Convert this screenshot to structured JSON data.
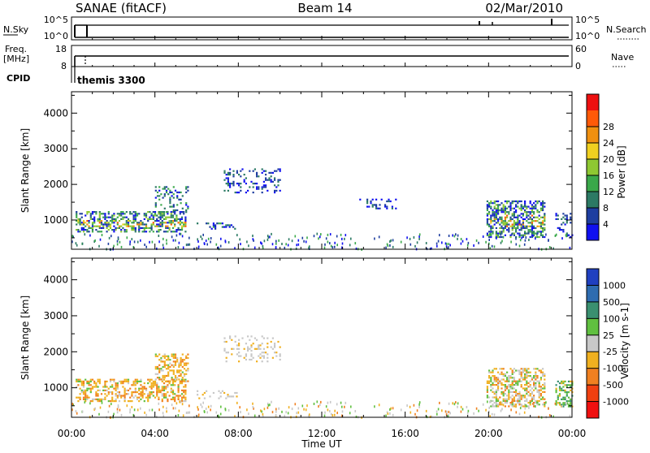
{
  "header": {
    "station": "SANAE (fitACF)",
    "beam": "Beam 14",
    "date": "02/Mar/2010"
  },
  "sky_panel": {
    "left_label": "N.Sky",
    "left_ticks": [
      "10^5",
      "10^0"
    ],
    "right_label": "N.Search",
    "right_ticks": [
      "10^5",
      "10^0"
    ]
  },
  "freq_panel": {
    "left_label_1": "Freq.",
    "left_label_2": "[MHz]",
    "left_ticks": [
      "18",
      "8"
    ],
    "right_label": "Nave",
    "right_ticks": [
      "60",
      "0"
    ]
  },
  "cpid": {
    "label": "CPID",
    "value": "themis 3300"
  },
  "chart_data": [
    {
      "type": "heatmap",
      "title": "",
      "quantity": "Power",
      "xlabel": "",
      "ylabel": "Slant Range [km]",
      "xlim": [
        "00:00",
        "24:00"
      ],
      "ylim": [
        180,
        4600
      ],
      "y_ticks": [
        "1000",
        "2000",
        "3000",
        "4000"
      ],
      "colorbar": {
        "label": "Power [dB]",
        "ticks": [
          "4",
          "8",
          "12",
          "16",
          "20",
          "24",
          "28"
        ],
        "range": [
          0,
          32
        ],
        "colors": [
          "#1010f0",
          "#1e3ea0",
          "#2c7a64",
          "#3aa84a",
          "#8ec832",
          "#f0d020",
          "#f09010",
          "#ff5a08",
          "#ee1010"
        ]
      },
      "echo_regions": [
        {
          "t_start": 0.2,
          "t_end": 5.5,
          "range_low": 650,
          "range_high": 1250,
          "level": "high"
        },
        {
          "t_start": 4.0,
          "t_end": 5.6,
          "range_low": 1200,
          "range_high": 1950,
          "level": "medium"
        },
        {
          "t_start": 6.0,
          "t_end": 7.9,
          "range_low": 730,
          "range_high": 930,
          "level": "medium"
        },
        {
          "t_start": 7.3,
          "t_end": 10.0,
          "range_low": 1750,
          "range_high": 2450,
          "level": "low"
        },
        {
          "t_start": 13.8,
          "t_end": 15.6,
          "range_low": 1300,
          "range_high": 1600,
          "level": "low"
        },
        {
          "t_start": 19.9,
          "t_end": 22.7,
          "range_low": 500,
          "range_high": 1550,
          "level": "high"
        },
        {
          "t_start": 23.2,
          "t_end": 24.0,
          "range_low": 500,
          "range_high": 1200,
          "level": "low"
        }
      ]
    },
    {
      "type": "heatmap",
      "title": "",
      "quantity": "Velocity",
      "xlabel": "Time UT",
      "ylabel": "Slant Range [km]",
      "xlim": [
        "00:00",
        "24:00"
      ],
      "ylim": [
        180,
        4600
      ],
      "x_ticks": [
        "00:00",
        "04:00",
        "08:00",
        "12:00",
        "16:00",
        "20:00",
        "00:00"
      ],
      "y_ticks": [
        "1000",
        "2000",
        "3000",
        "4000"
      ],
      "colorbar": {
        "label": "Velocity [m s-1]",
        "ticks": [
          "1000",
          "500",
          "100",
          "25",
          "-25",
          "-100",
          "-500",
          "-1000"
        ],
        "range": [
          -1250,
          1250
        ],
        "colors": [
          "#2040c0",
          "#2e6cb0",
          "#3a9070",
          "#60c040",
          "#c8c8c8",
          "#f0b020",
          "#f08020",
          "#f04010",
          "#f01010"
        ]
      },
      "echo_regions": [
        {
          "t_start": 0.2,
          "t_end": 5.5,
          "range_low": 650,
          "range_high": 1250,
          "velocity": "negative"
        },
        {
          "t_start": 4.0,
          "t_end": 5.6,
          "range_low": 1200,
          "range_high": 1950,
          "velocity": "negative"
        },
        {
          "t_start": 6.0,
          "t_end": 7.9,
          "range_low": 730,
          "range_high": 930,
          "velocity": "near-zero"
        },
        {
          "t_start": 7.3,
          "t_end": 10.0,
          "range_low": 1750,
          "range_high": 2450,
          "velocity": "near-zero"
        },
        {
          "t_start": 19.9,
          "t_end": 22.7,
          "range_low": 500,
          "range_high": 1550,
          "velocity": "mixed"
        },
        {
          "t_start": 23.2,
          "t_end": 24.0,
          "range_low": 500,
          "range_high": 1200,
          "velocity": "positive"
        }
      ]
    }
  ]
}
